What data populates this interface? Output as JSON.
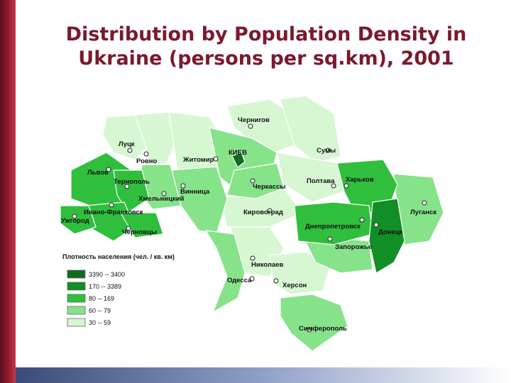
{
  "title": {
    "line1": "Distribution by Population Density in",
    "line2": "Ukraine (persons per sq.km), 2001"
  },
  "legend": {
    "title": "Плотность населения (чел. / кв. км)",
    "classes": [
      {
        "label": "3390 -- 3400",
        "color": "#0e6b1f"
      },
      {
        "label": "170 -- 3389",
        "color": "#118e25"
      },
      {
        "label": "80 -- 169",
        "color": "#2fbf3d"
      },
      {
        "label": "60 -- 79",
        "color": "#86e38a"
      },
      {
        "label": "30 -- 59",
        "color": "#d6f7d2"
      }
    ]
  },
  "cities": [
    "Чернигов",
    "Луцк",
    "Ровно",
    "Житомир",
    "КИЕВ",
    "Сумы",
    "Львов",
    "Тернополь",
    "Хмельницкий",
    "Винница",
    "Черкассы",
    "Полтава",
    "Харьков",
    "Ивано-Франковск",
    "Ужгород",
    "Черновцы",
    "Кировоград",
    "Днепропетровск",
    "Луганск",
    "Донецк",
    "Запорожье",
    "Николаев",
    "Одесса",
    "Херсон",
    "Симферополь"
  ]
}
